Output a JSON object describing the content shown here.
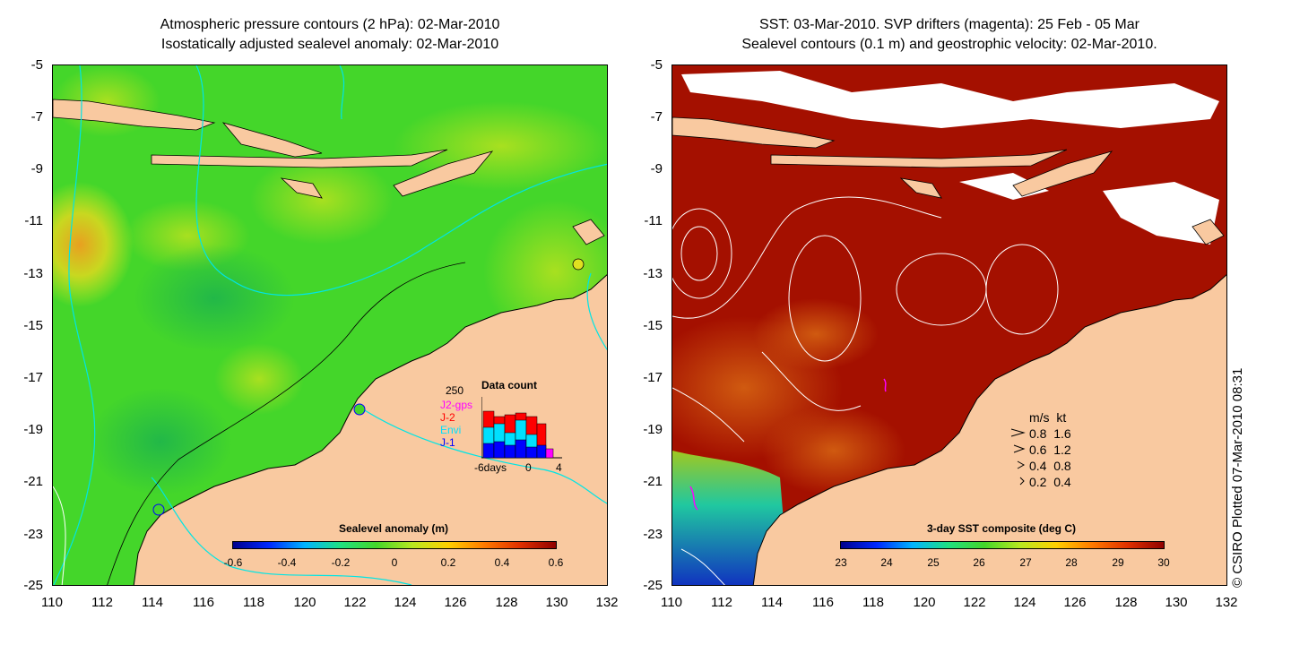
{
  "left_panel": {
    "title_line1": "Atmospheric pressure contours (2 hPa): 02-Mar-2010",
    "title_line2": "Isostatically adjusted sealevel anomaly: 02-Mar-2010",
    "colorbar": {
      "title": "Sealevel anomaly (m)",
      "ticks": [
        "-0.6",
        "-0.4",
        "-0.2",
        "0",
        "0.2",
        "0.4",
        "0.6"
      ]
    },
    "data_count": {
      "title": "Data count",
      "max_label": "250",
      "series": [
        {
          "name": "J2-gps",
          "color": "#ff00ff"
        },
        {
          "name": "J-2",
          "color": "#ff0000"
        },
        {
          "name": "Envi",
          "color": "#00e0ff"
        },
        {
          "name": "J-1",
          "color": "#0000ff"
        }
      ],
      "x_labels": [
        "-6days",
        "0",
        "4"
      ]
    }
  },
  "right_panel": {
    "title_line1": "SST: 03-Mar-2010. SVP drifters (magenta): 25 Feb - 05 Mar",
    "title_line2": "Sealevel contours (0.1 m) and geostrophic velocity: 02-Mar-2010.",
    "colorbar": {
      "title": "3-day SST composite (deg C)",
      "ticks": [
        "23",
        "24",
        "25",
        "26",
        "27",
        "28",
        "29",
        "30"
      ]
    },
    "velocity_legend": {
      "header": "m/s  kt",
      "rows": [
        "0.8  1.6",
        "0.6  1.2",
        "0.4  0.8",
        "0.2  0.4"
      ]
    }
  },
  "axes": {
    "y_ticks": [
      "-5",
      "-7",
      "-9",
      "-11",
      "-13",
      "-15",
      "-17",
      "-19",
      "-21",
      "-23",
      "-25"
    ],
    "x_ticks": [
      "110",
      "112",
      "114",
      "116",
      "118",
      "120",
      "122",
      "124",
      "126",
      "128",
      "130",
      "132"
    ]
  },
  "credit": "© CSIRO Plotted 07-Mar-2010 08:31",
  "colors": {
    "land": "#f9c9a0",
    "ocean_green": "#44d62a",
    "sst_red": "#a41000",
    "contour_cyan": "#00e5e5"
  }
}
